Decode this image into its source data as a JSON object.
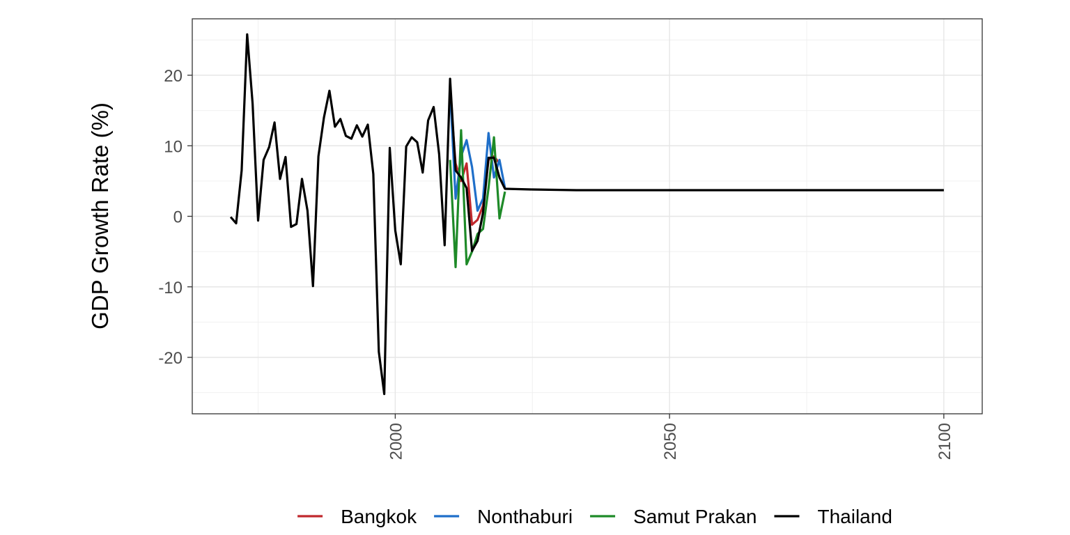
{
  "chart_data": {
    "type": "line",
    "title": "",
    "xlabel": "",
    "ylabel": "GDP Growth Rate (%)",
    "xlim": [
      1963,
      2107
    ],
    "ylim": [
      -28,
      28
    ],
    "x_ticks": [
      2000,
      2050,
      2100
    ],
    "y_ticks": [
      -20,
      -10,
      0,
      10,
      20
    ],
    "grid": true,
    "legend_position": "bottom",
    "series": [
      {
        "name": "Bangkok",
        "color": "#c0282d",
        "points": [
          [
            2010,
            17.5
          ],
          [
            2011,
            7.5
          ],
          [
            2012,
            5.0
          ],
          [
            2013,
            7.5
          ],
          [
            2014,
            -1.2
          ],
          [
            2015,
            -0.5
          ],
          [
            2016,
            1.5
          ],
          [
            2017,
            8.0
          ],
          [
            2018,
            8.5
          ],
          [
            2019,
            7.5
          ]
        ]
      },
      {
        "name": "Nonthaburi",
        "color": "#1f6fc9",
        "points": [
          [
            2010,
            18.0
          ],
          [
            2011,
            2.5
          ],
          [
            2012,
            8.5
          ],
          [
            2013,
            10.8
          ],
          [
            2014,
            7.0
          ],
          [
            2015,
            0.8
          ],
          [
            2016,
            2.5
          ],
          [
            2017,
            11.8
          ],
          [
            2018,
            5.5
          ],
          [
            2019,
            8.0
          ],
          [
            2020,
            4.0
          ]
        ]
      },
      {
        "name": "Samut Prakan",
        "color": "#1e8a28",
        "points": [
          [
            2010,
            8.0
          ],
          [
            2011,
            -7.2
          ],
          [
            2012,
            12.2
          ],
          [
            2013,
            -6.8
          ],
          [
            2014,
            -5.0
          ],
          [
            2015,
            -2.5
          ],
          [
            2016,
            -1.8
          ],
          [
            2017,
            4.0
          ],
          [
            2018,
            11.2
          ],
          [
            2019,
            -0.3
          ],
          [
            2020,
            3.5
          ]
        ]
      },
      {
        "name": "Thailand",
        "color": "#000000",
        "points": [
          [
            1970,
            -0.1
          ],
          [
            1971,
            -1.0
          ],
          [
            1972,
            6.5
          ],
          [
            1973,
            25.8
          ],
          [
            1974,
            16.0
          ],
          [
            1975,
            -0.6
          ],
          [
            1976,
            8.0
          ],
          [
            1977,
            9.8
          ],
          [
            1978,
            13.3
          ],
          [
            1979,
            5.3
          ],
          [
            1980,
            8.4
          ],
          [
            1981,
            -1.5
          ],
          [
            1982,
            -1.1
          ],
          [
            1983,
            5.3
          ],
          [
            1984,
            0.8
          ],
          [
            1985,
            -9.9
          ],
          [
            1986,
            8.5
          ],
          [
            1987,
            14.0
          ],
          [
            1988,
            17.8
          ],
          [
            1989,
            12.7
          ],
          [
            1990,
            13.8
          ],
          [
            1991,
            11.4
          ],
          [
            1992,
            11.0
          ],
          [
            1993,
            12.9
          ],
          [
            1994,
            11.3
          ],
          [
            1995,
            13.0
          ],
          [
            1996,
            6.0
          ],
          [
            1997,
            -19.2
          ],
          [
            1998,
            -25.2
          ],
          [
            1999,
            9.7
          ],
          [
            2000,
            -2.0
          ],
          [
            2001,
            -6.8
          ],
          [
            2002,
            9.9
          ],
          [
            2003,
            11.2
          ],
          [
            2004,
            10.5
          ],
          [
            2005,
            6.2
          ],
          [
            2006,
            13.6
          ],
          [
            2007,
            15.5
          ],
          [
            2008,
            8.8
          ],
          [
            2009,
            -4.1
          ],
          [
            2010,
            19.5
          ],
          [
            2011,
            6.5
          ],
          [
            2012,
            5.5
          ],
          [
            2013,
            4.0
          ],
          [
            2014,
            -4.9
          ],
          [
            2015,
            -3.5
          ],
          [
            2016,
            0.5
          ],
          [
            2017,
            8.3
          ],
          [
            2018,
            8.3
          ],
          [
            2019,
            5.5
          ],
          [
            2020,
            3.9
          ],
          [
            2025,
            3.8
          ],
          [
            2033,
            3.7
          ],
          [
            2050,
            3.7
          ],
          [
            2100,
            3.7
          ]
        ]
      }
    ]
  }
}
